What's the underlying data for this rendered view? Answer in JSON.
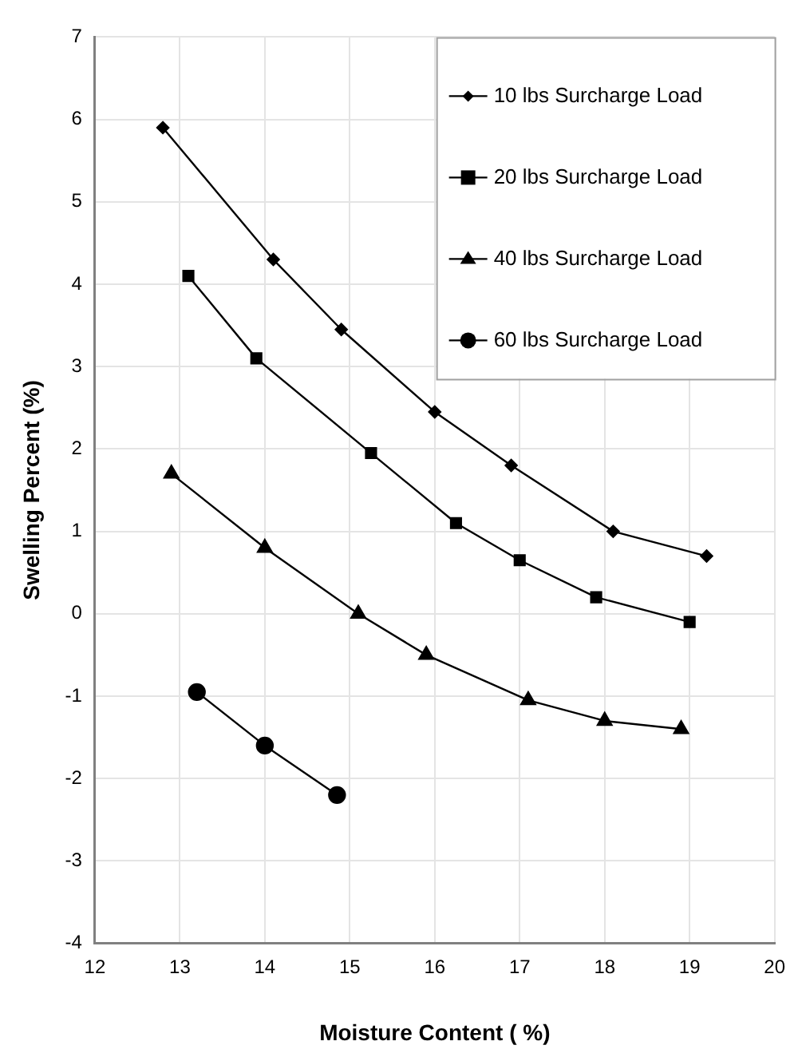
{
  "chart_data": {
    "type": "line",
    "xlabel": "Moisture Content ( %)",
    "ylabel": "Swelling Percent (%)",
    "xlim": [
      12,
      20
    ],
    "xticks": [
      12,
      13,
      14,
      15,
      16,
      17,
      18,
      19,
      20
    ],
    "ylim": [
      -4,
      7
    ],
    "yticks": [
      -4,
      -3,
      -2,
      -1,
      0,
      1,
      2,
      3,
      4,
      5,
      6,
      7
    ],
    "grid": true,
    "legend": "top right",
    "series": [
      {
        "name": "10 lbs Surcharge Load",
        "color": "#000000",
        "marker": "diamond",
        "x": [
          12.8,
          14.1,
          14.9,
          16.0,
          16.9,
          18.1,
          19.2
        ],
        "values": [
          5.9,
          4.3,
          3.45,
          2.45,
          1.8,
          1.0,
          0.7
        ]
      },
      {
        "name": "20 lbs Surcharge Load",
        "color": "#000000",
        "marker": "square",
        "x": [
          13.1,
          13.9,
          15.25,
          16.25,
          17.0,
          17.9,
          19.0
        ],
        "values": [
          4.1,
          3.1,
          1.95,
          1.1,
          0.65,
          0.2,
          -0.1
        ]
      },
      {
        "name": "40 lbs Surcharge Load",
        "color": "#000000",
        "marker": "triangle",
        "x": [
          12.9,
          14.0,
          15.1,
          15.9,
          17.1,
          18.0,
          18.9
        ],
        "values": [
          1.7,
          0.8,
          0.0,
          -0.5,
          -1.05,
          -1.3,
          -1.4
        ]
      },
      {
        "name": "60 lbs Surcharge Load",
        "color": "#000000",
        "marker": "circle",
        "x": [
          13.2,
          14.0,
          14.85
        ],
        "values": [
          -0.95,
          -1.6,
          -2.2
        ]
      }
    ]
  }
}
